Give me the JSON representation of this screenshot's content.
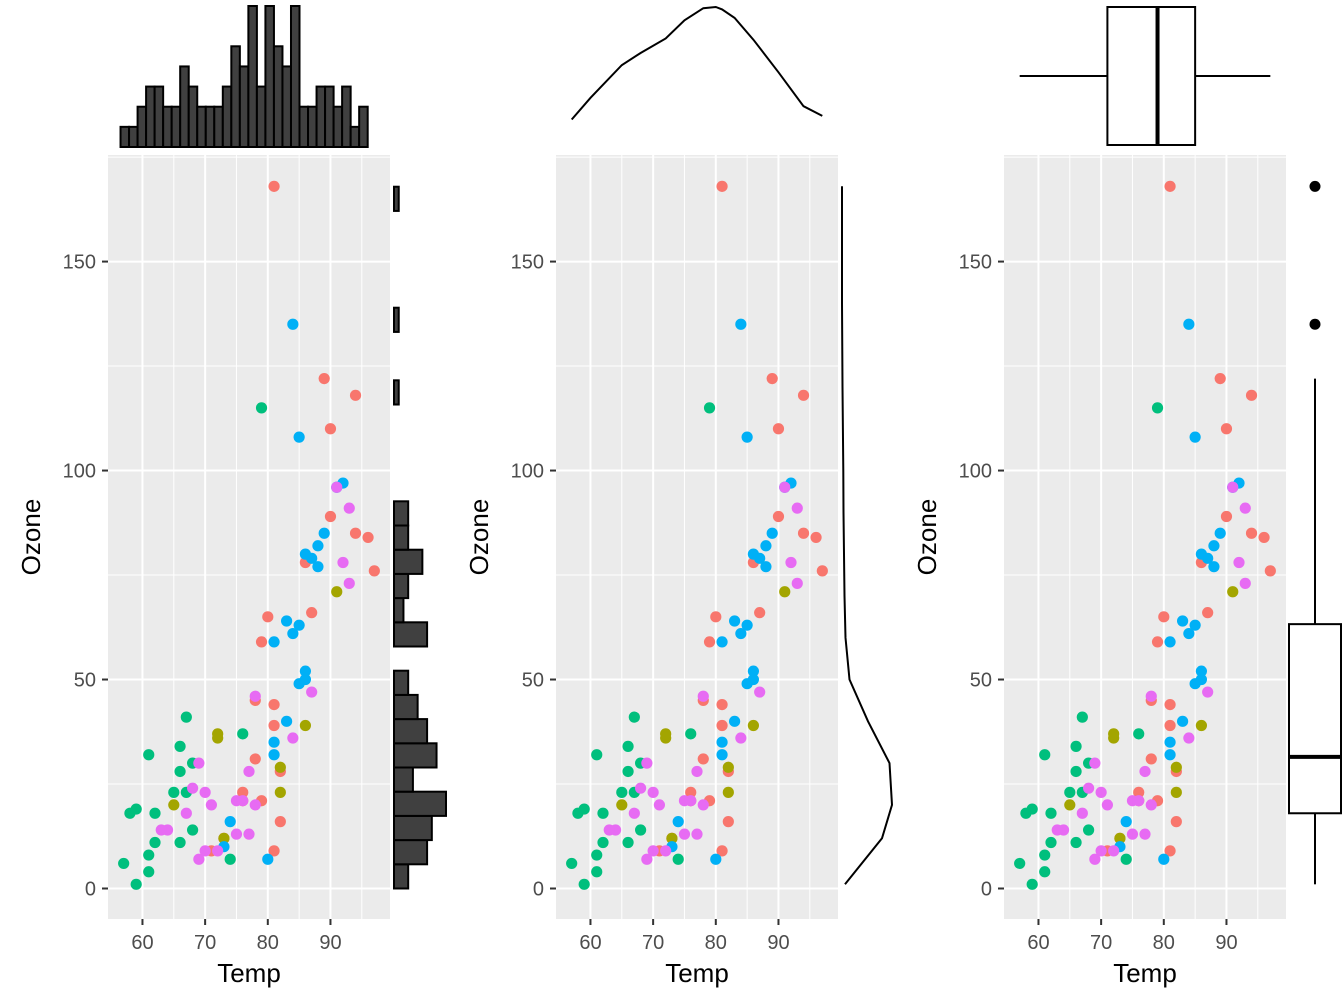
{
  "chart_data": [
    {
      "type": "scatter",
      "marginal": "histogram",
      "xlabel": "Temp",
      "ylabel": "Ozone",
      "xlim": [
        54.5,
        99.5
      ],
      "ylim": [
        -7.3,
        175.5
      ],
      "x_ticks": [
        60,
        70,
        80,
        90
      ],
      "y_ticks": [
        0,
        50,
        100,
        150
      ],
      "x_tick_labels": [
        "60",
        "70",
        "80",
        "90"
      ],
      "y_tick_labels": [
        "0",
        "50",
        "100",
        "150"
      ],
      "grid": true,
      "legend": "none",
      "top_histogram": {
        "bin_start": 56.5,
        "bin_width": 1.36,
        "counts": [
          1,
          1,
          2,
          3,
          3,
          2,
          2,
          4,
          3,
          2,
          2,
          2,
          3,
          5,
          4,
          7,
          3,
          7,
          5,
          4,
          7,
          2,
          2,
          3,
          3,
          2,
          3,
          1,
          2
        ]
      },
      "right_histogram": {
        "bin_start": 0,
        "bin_width": 5.79,
        "counts": [
          3,
          7,
          8,
          11,
          4,
          9,
          7,
          5,
          3,
          0,
          7,
          2,
          3,
          6,
          3,
          3,
          0,
          0,
          0,
          0,
          1,
          0,
          0,
          1,
          0,
          0,
          0,
          0,
          1
        ]
      }
    },
    {
      "type": "scatter",
      "marginal": "density",
      "xlabel": "Temp",
      "ylabel": "Ozone",
      "xlim": [
        54.5,
        99.5
      ],
      "ylim": [
        -7.3,
        175.5
      ],
      "x_ticks": [
        60,
        70,
        80,
        90
      ],
      "y_ticks": [
        0,
        50,
        100,
        150
      ],
      "x_tick_labels": [
        "60",
        "70",
        "80",
        "90"
      ],
      "y_tick_labels": [
        "0",
        "50",
        "100",
        "150"
      ],
      "grid": true,
      "legend": "none",
      "top_density": {
        "x": [
          57,
          60,
          65,
          68,
          72,
          75,
          78,
          80,
          81,
          83,
          86,
          90,
          94,
          97
        ],
        "density": [
          0.07,
          0.25,
          0.52,
          0.62,
          0.74,
          0.89,
          0.99,
          1.0,
          0.98,
          0.91,
          0.73,
          0.46,
          0.18,
          0.1
        ]
      },
      "right_density": {
        "y": [
          1,
          12,
          20,
          30,
          40,
          50,
          60,
          70,
          80,
          90,
          100,
          120,
          140,
          168
        ],
        "density": [
          0.06,
          0.8,
          1.0,
          0.95,
          0.52,
          0.15,
          0.07,
          0.05,
          0.04,
          0.03,
          0.025,
          0.01,
          0.0,
          0.0
        ]
      }
    },
    {
      "type": "scatter",
      "marginal": "boxplot",
      "xlabel": "Temp",
      "ylabel": "Ozone",
      "xlim": [
        54.5,
        99.5
      ],
      "ylim": [
        -7.3,
        175.5
      ],
      "x_ticks": [
        60,
        70,
        80,
        90
      ],
      "y_ticks": [
        0,
        50,
        100,
        150
      ],
      "x_tick_labels": [
        "60",
        "70",
        "80",
        "90"
      ],
      "y_tick_labels": [
        "0",
        "50",
        "100",
        "150"
      ],
      "grid": true,
      "legend": "none",
      "top_boxplot": {
        "min": 57,
        "q1": 71,
        "median": 79,
        "q3": 85,
        "max": 97
      },
      "right_boxplot": {
        "min": 1,
        "q1": 18,
        "median": 31.5,
        "q3": 63.25,
        "max": 122,
        "outliers": [
          135,
          168
        ]
      }
    }
  ],
  "series_colors": {
    "May": "#F8766D",
    "Jun": "#A3A500",
    "Jul": "#00BF7D",
    "Aug": "#00B0F6",
    "Sep": "#E76BF3"
  },
  "points": [
    {
      "x": 81,
      "y": 168,
      "c": "#F8766D"
    },
    {
      "x": 89,
      "y": 122,
      "c": "#F8766D"
    },
    {
      "x": 94,
      "y": 118,
      "c": "#F8766D"
    },
    {
      "x": 90,
      "y": 110,
      "c": "#F8766D"
    },
    {
      "x": 90,
      "y": 89,
      "c": "#F8766D"
    },
    {
      "x": 94,
      "y": 85,
      "c": "#F8766D"
    },
    {
      "x": 96,
      "y": 84,
      "c": "#F8766D"
    },
    {
      "x": 86,
      "y": 78,
      "c": "#F8766D"
    },
    {
      "x": 97,
      "y": 76,
      "c": "#F8766D"
    },
    {
      "x": 87,
      "y": 66,
      "c": "#F8766D"
    },
    {
      "x": 80,
      "y": 65,
      "c": "#F8766D"
    },
    {
      "x": 79,
      "y": 59,
      "c": "#F8766D"
    },
    {
      "x": 78,
      "y": 45,
      "c": "#F8766D"
    },
    {
      "x": 81,
      "y": 44,
      "c": "#F8766D"
    },
    {
      "x": 81,
      "y": 39,
      "c": "#F8766D"
    },
    {
      "x": 82,
      "y": 28,
      "c": "#F8766D"
    },
    {
      "x": 78,
      "y": 31,
      "c": "#F8766D"
    },
    {
      "x": 76,
      "y": 23,
      "c": "#F8766D"
    },
    {
      "x": 76,
      "y": 21,
      "c": "#F8766D"
    },
    {
      "x": 79,
      "y": 21,
      "c": "#F8766D"
    },
    {
      "x": 82,
      "y": 16,
      "c": "#F8766D"
    },
    {
      "x": 73,
      "y": 12,
      "c": "#F8766D"
    },
    {
      "x": 71,
      "y": 9,
      "c": "#F8766D"
    },
    {
      "x": 81,
      "y": 9,
      "c": "#F8766D"
    },
    {
      "x": 91,
      "y": 71,
      "c": "#A3A500"
    },
    {
      "x": 86,
      "y": 39,
      "c": "#A3A500"
    },
    {
      "x": 72,
      "y": 36,
      "c": "#A3A500"
    },
    {
      "x": 72,
      "y": 37,
      "c": "#A3A500"
    },
    {
      "x": 82,
      "y": 29,
      "c": "#A3A500"
    },
    {
      "x": 82,
      "y": 23,
      "c": "#A3A500"
    },
    {
      "x": 65,
      "y": 20,
      "c": "#A3A500"
    },
    {
      "x": 73,
      "y": 12,
      "c": "#A3A500"
    },
    {
      "x": 79,
      "y": 115,
      "c": "#00BF7D"
    },
    {
      "x": 67,
      "y": 41,
      "c": "#00BF7D"
    },
    {
      "x": 76,
      "y": 37,
      "c": "#00BF7D"
    },
    {
      "x": 66,
      "y": 34,
      "c": "#00BF7D"
    },
    {
      "x": 61,
      "y": 32,
      "c": "#00BF7D"
    },
    {
      "x": 68,
      "y": 30,
      "c": "#00BF7D"
    },
    {
      "x": 66,
      "y": 28,
      "c": "#00BF7D"
    },
    {
      "x": 67,
      "y": 23,
      "c": "#00BF7D"
    },
    {
      "x": 65,
      "y": 23,
      "c": "#00BF7D"
    },
    {
      "x": 62,
      "y": 18,
      "c": "#00BF7D"
    },
    {
      "x": 58,
      "y": 18,
      "c": "#00BF7D"
    },
    {
      "x": 59,
      "y": 19,
      "c": "#00BF7D"
    },
    {
      "x": 68,
      "y": 14,
      "c": "#00BF7D"
    },
    {
      "x": 66,
      "y": 11,
      "c": "#00BF7D"
    },
    {
      "x": 62,
      "y": 11,
      "c": "#00BF7D"
    },
    {
      "x": 61,
      "y": 8,
      "c": "#00BF7D"
    },
    {
      "x": 74,
      "y": 7,
      "c": "#00BF7D"
    },
    {
      "x": 57,
      "y": 6,
      "c": "#00BF7D"
    },
    {
      "x": 61,
      "y": 4,
      "c": "#00BF7D"
    },
    {
      "x": 59,
      "y": 1,
      "c": "#00BF7D"
    },
    {
      "x": 84,
      "y": 135,
      "c": "#00B0F6"
    },
    {
      "x": 85,
      "y": 108,
      "c": "#00B0F6"
    },
    {
      "x": 92,
      "y": 97,
      "c": "#00B0F6"
    },
    {
      "x": 91,
      "y": 96,
      "c": "#00B0F6"
    },
    {
      "x": 89,
      "y": 85,
      "c": "#00B0F6"
    },
    {
      "x": 88,
      "y": 82,
      "c": "#00B0F6"
    },
    {
      "x": 86,
      "y": 80,
      "c": "#00B0F6"
    },
    {
      "x": 87,
      "y": 79,
      "c": "#00B0F6"
    },
    {
      "x": 88,
      "y": 77,
      "c": "#00B0F6"
    },
    {
      "x": 83,
      "y": 64,
      "c": "#00B0F6"
    },
    {
      "x": 85,
      "y": 63,
      "c": "#00B0F6"
    },
    {
      "x": 84,
      "y": 61,
      "c": "#00B0F6"
    },
    {
      "x": 81,
      "y": 59,
      "c": "#00B0F6"
    },
    {
      "x": 86,
      "y": 52,
      "c": "#00B0F6"
    },
    {
      "x": 86,
      "y": 50,
      "c": "#00B0F6"
    },
    {
      "x": 85,
      "y": 49,
      "c": "#00B0F6"
    },
    {
      "x": 83,
      "y": 40,
      "c": "#00B0F6"
    },
    {
      "x": 81,
      "y": 35,
      "c": "#00B0F6"
    },
    {
      "x": 81,
      "y": 32,
      "c": "#00B0F6"
    },
    {
      "x": 74,
      "y": 16,
      "c": "#00B0F6"
    },
    {
      "x": 73,
      "y": 10,
      "c": "#00B0F6"
    },
    {
      "x": 80,
      "y": 7,
      "c": "#00B0F6"
    },
    {
      "x": 91,
      "y": 96,
      "c": "#E76BF3"
    },
    {
      "x": 93,
      "y": 91,
      "c": "#E76BF3"
    },
    {
      "x": 92,
      "y": 78,
      "c": "#E76BF3"
    },
    {
      "x": 93,
      "y": 73,
      "c": "#E76BF3"
    },
    {
      "x": 87,
      "y": 47,
      "c": "#E76BF3"
    },
    {
      "x": 78,
      "y": 46,
      "c": "#E76BF3"
    },
    {
      "x": 84,
      "y": 36,
      "c": "#E76BF3"
    },
    {
      "x": 69,
      "y": 30,
      "c": "#E76BF3"
    },
    {
      "x": 77,
      "y": 28,
      "c": "#E76BF3"
    },
    {
      "x": 75,
      "y": 21,
      "c": "#E76BF3"
    },
    {
      "x": 76,
      "y": 21,
      "c": "#E76BF3"
    },
    {
      "x": 68,
      "y": 24,
      "c": "#E76BF3"
    },
    {
      "x": 70,
      "y": 23,
      "c": "#E76BF3"
    },
    {
      "x": 71,
      "y": 20,
      "c": "#E76BF3"
    },
    {
      "x": 78,
      "y": 20,
      "c": "#E76BF3"
    },
    {
      "x": 64,
      "y": 14,
      "c": "#E76BF3"
    },
    {
      "x": 67,
      "y": 18,
      "c": "#E76BF3"
    },
    {
      "x": 63,
      "y": 14,
      "c": "#E76BF3"
    },
    {
      "x": 77,
      "y": 13,
      "c": "#E76BF3"
    },
    {
      "x": 75,
      "y": 13,
      "c": "#E76BF3"
    },
    {
      "x": 72,
      "y": 9,
      "c": "#E76BF3"
    },
    {
      "x": 70,
      "y": 9,
      "c": "#E76BF3"
    },
    {
      "x": 69,
      "y": 7,
      "c": "#E76BF3"
    }
  ]
}
